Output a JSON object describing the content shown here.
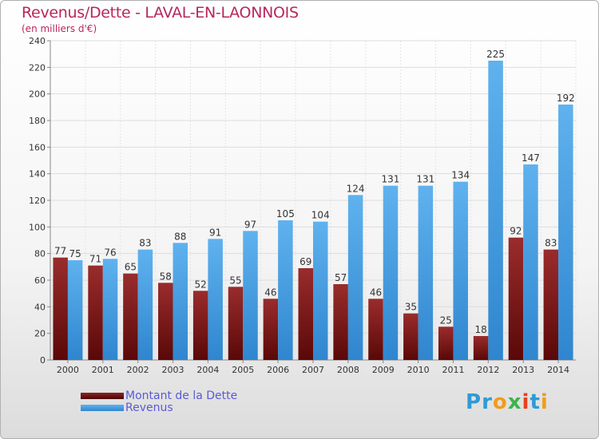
{
  "title": "Revenus/Dette - LAVAL-EN-LAONNOIS",
  "subtitle": "(en milliers d'€)",
  "logo": {
    "letters": [
      "P",
      "r",
      "o",
      "x",
      "i",
      "t",
      "i"
    ],
    "colors": [
      "#2e9bd6",
      "#2e9bd6",
      "#f29b1d",
      "#3ab54a",
      "#e8411f",
      "#2e9bd6",
      "#f29b1d"
    ]
  },
  "colors": {
    "dette": "#7a1f1f",
    "revenus": "#4aa3e6"
  },
  "legend": [
    {
      "label": "Montant de la Dette",
      "color": "#7a1f1f"
    },
    {
      "label": "Revenus",
      "color": "#4aa3e6"
    }
  ],
  "chart_data": {
    "type": "bar",
    "title": "Revenus/Dette - LAVAL-EN-LAONNOIS",
    "subtitle": "(en milliers d'€)",
    "categories": [
      "2000",
      "2001",
      "2002",
      "2003",
      "2004",
      "2005",
      "2006",
      "2007",
      "2008",
      "2009",
      "2010",
      "2011",
      "2012",
      "2013",
      "2014"
    ],
    "series": [
      {
        "name": "Montant de la Dette",
        "values": [
          77,
          71,
          65,
          58,
          52,
          55,
          46,
          69,
          57,
          46,
          35,
          25,
          18,
          92,
          83
        ]
      },
      {
        "name": "Revenus",
        "values": [
          75,
          76,
          83,
          88,
          91,
          97,
          105,
          104,
          124,
          131,
          131,
          134,
          225,
          147,
          192
        ]
      }
    ],
    "yticks": [
      0,
      20,
      40,
      60,
      80,
      100,
      120,
      140,
      160,
      180,
      200,
      220,
      240
    ],
    "ylim": [
      0,
      240
    ],
    "grid": true,
    "legend_position": "bottom-left"
  }
}
